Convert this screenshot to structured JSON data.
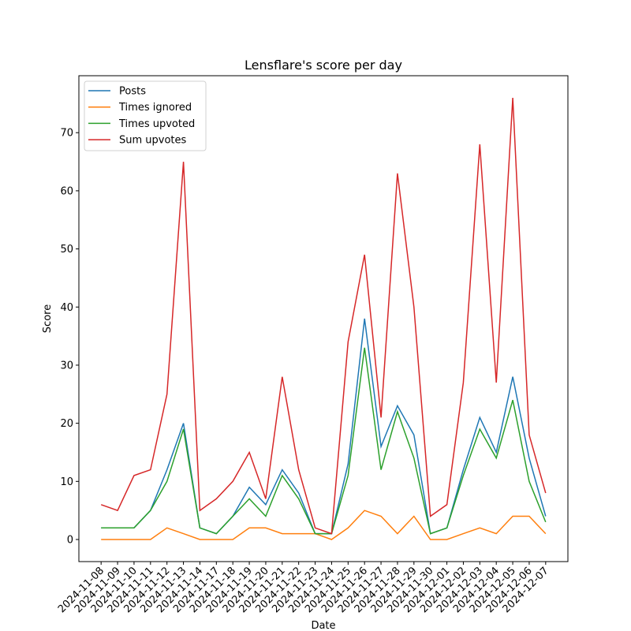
{
  "chart_data": {
    "type": "line",
    "title": "Lensflare's score per day",
    "xlabel": "Date",
    "ylabel": "Score",
    "categories": [
      "2024-11-08",
      "2024-11-09",
      "2024-11-10",
      "2024-11-11",
      "2024-11-12",
      "2024-11-13",
      "2024-11-14",
      "2024-11-17",
      "2024-11-18",
      "2024-11-19",
      "2024-11-20",
      "2024-11-21",
      "2024-11-22",
      "2024-11-23",
      "2024-11-24",
      "2024-11-25",
      "2024-11-26",
      "2024-11-27",
      "2024-11-28",
      "2024-11-29",
      "2024-11-30",
      "2024-12-01",
      "2024-12-02",
      "2024-12-03",
      "2024-12-04",
      "2024-12-05",
      "2024-12-06",
      "2024-12-07"
    ],
    "series": [
      {
        "name": "Posts",
        "color": "#1f77b4",
        "values": [
          2,
          2,
          2,
          5,
          12,
          20,
          2,
          1,
          4,
          9,
          6,
          12,
          8,
          1,
          1,
          13,
          38,
          16,
          23,
          18,
          1,
          2,
          12,
          21,
          15,
          28,
          14,
          4
        ]
      },
      {
        "name": "Times ignored",
        "color": "#ff7f0e",
        "values": [
          0,
          0,
          0,
          0,
          2,
          1,
          0,
          0,
          0,
          2,
          2,
          1,
          1,
          1,
          0,
          2,
          5,
          4,
          1,
          4,
          0,
          0,
          1,
          2,
          1,
          4,
          4,
          1
        ]
      },
      {
        "name": "Times upvoted",
        "color": "#2ca02c",
        "values": [
          2,
          2,
          2,
          5,
          10,
          19,
          2,
          1,
          4,
          7,
          4,
          11,
          7,
          1,
          1,
          11,
          33,
          12,
          22,
          14,
          1,
          2,
          11,
          19,
          14,
          24,
          10,
          3
        ]
      },
      {
        "name": "Sum upvotes",
        "color": "#d62728",
        "values": [
          6,
          5,
          11,
          12,
          25,
          65,
          5,
          7,
          10,
          15,
          7,
          28,
          12,
          2,
          1,
          34,
          49,
          21,
          63,
          40,
          4,
          6,
          27,
          68,
          27,
          76,
          18,
          8
        ]
      }
    ],
    "ylim": [
      -3.8,
      79.8
    ],
    "yticks": [
      0,
      10,
      20,
      30,
      40,
      50,
      60,
      70
    ],
    "legend": "upper left"
  }
}
